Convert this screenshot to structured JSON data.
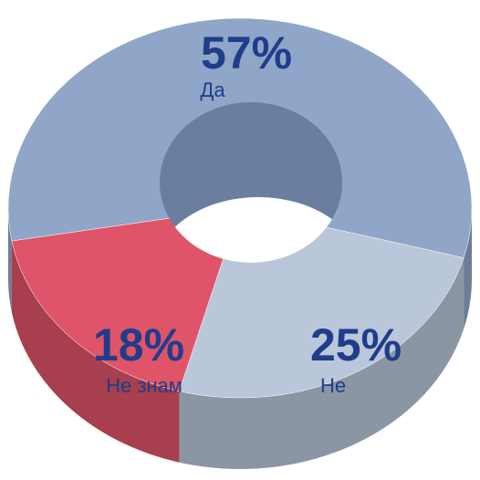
{
  "chart_data": {
    "type": "pie",
    "donut": true,
    "categories": [
      "Да",
      "Не",
      "Не знам"
    ],
    "values": [
      57,
      25,
      18
    ],
    "value_labels": [
      "57%",
      "25%",
      "18%"
    ],
    "colors": [
      "#8fa6c9",
      "#bac7da",
      "#df5468"
    ]
  }
}
